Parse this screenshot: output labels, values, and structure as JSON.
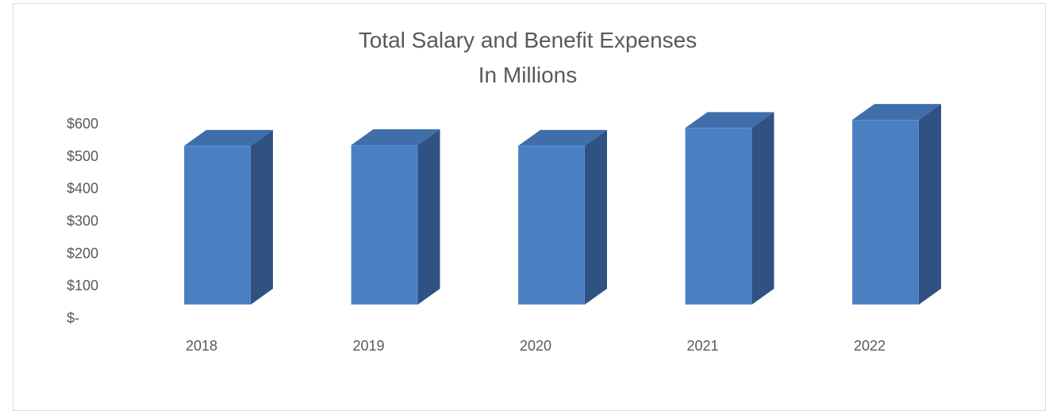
{
  "chart_data": {
    "type": "bar",
    "title": "Total Salary and Benefit Expenses",
    "subtitle": "In Millions",
    "xlabel": "",
    "ylabel": "",
    "categories": [
      "2018",
      "2019",
      "2020",
      "2021",
      "2022"
    ],
    "values": [
      500,
      502,
      500,
      555,
      580
    ],
    "ylim": [
      0,
      600
    ],
    "ytick_values": [
      0,
      100,
      200,
      300,
      400,
      500,
      600
    ],
    "ytick_labels": [
      "$-",
      "$100",
      "$200",
      "$300",
      "$400",
      "$500",
      "$600"
    ],
    "grid": false,
    "legend": "none",
    "style": "3d-column",
    "colors": {
      "front": "#4a7fc1",
      "top": "#3f6eaa",
      "side": "#2f5283",
      "text": "#595959",
      "border": "#d9d9d9"
    }
  }
}
